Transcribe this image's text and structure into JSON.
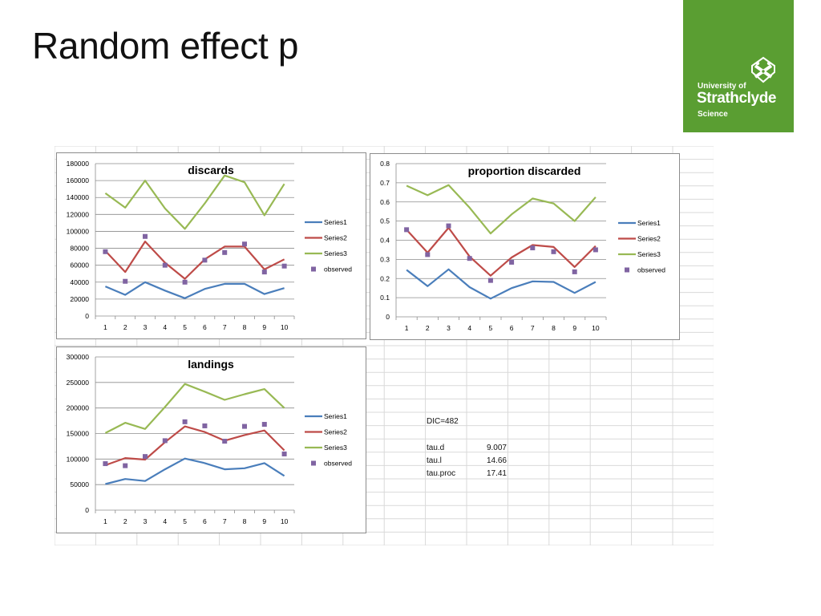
{
  "slide": {
    "title": "Random effect p"
  },
  "logo": {
    "line1": "University of",
    "line2": "Strathclyde",
    "line3": "Science",
    "background": "#5a9e32"
  },
  "colors": {
    "series1": "#4a7ebb",
    "series2": "#be4b48",
    "series3": "#98b954",
    "observed": "#8064a2"
  },
  "stats": {
    "dic": "DIC=482",
    "rows": [
      {
        "label": "tau.d",
        "value": "9.007"
      },
      {
        "label": "tau.l",
        "value": "14.66"
      },
      {
        "label": "tau.proc",
        "value": "17.41"
      }
    ]
  },
  "chart_data": [
    {
      "id": "discards",
      "type": "line",
      "title": "discards",
      "x": [
        1,
        2,
        3,
        4,
        5,
        6,
        7,
        8,
        9,
        10
      ],
      "ylim": [
        0,
        180000
      ],
      "yticks": [
        0,
        20000,
        40000,
        60000,
        80000,
        100000,
        120000,
        140000,
        160000,
        180000
      ],
      "series": [
        {
          "name": "Series1",
          "values": [
            35000,
            25000,
            40000,
            30000,
            21000,
            32000,
            38000,
            38000,
            26000,
            33000
          ]
        },
        {
          "name": "Series2",
          "values": [
            77000,
            52000,
            88000,
            63000,
            44000,
            67000,
            82000,
            82000,
            55000,
            67000
          ]
        },
        {
          "name": "Series3",
          "values": [
            145000,
            128000,
            160000,
            127000,
            103000,
            133000,
            166000,
            158000,
            119000,
            156000
          ]
        }
      ],
      "observed": {
        "name": "observed",
        "values": [
          76000,
          41000,
          94000,
          60000,
          40000,
          66000,
          75000,
          85000,
          52000,
          59000
        ]
      },
      "legend": "right",
      "grid": true
    },
    {
      "id": "proportion",
      "type": "line",
      "title": "proportion discarded",
      "x": [
        1,
        2,
        3,
        4,
        5,
        6,
        7,
        8,
        9,
        10
      ],
      "ylim": [
        0,
        0.8
      ],
      "yticks": [
        0,
        0.1,
        0.2,
        0.3,
        0.4,
        0.5,
        0.6,
        0.7,
        0.8
      ],
      "series": [
        {
          "name": "Series1",
          "values": [
            0.245,
            0.16,
            0.248,
            0.155,
            0.095,
            0.15,
            0.185,
            0.182,
            0.125,
            0.182
          ]
        },
        {
          "name": "Series2",
          "values": [
            0.455,
            0.335,
            0.465,
            0.315,
            0.215,
            0.31,
            0.375,
            0.365,
            0.26,
            0.37
          ]
        },
        {
          "name": "Series3",
          "values": [
            0.685,
            0.635,
            0.688,
            0.57,
            0.435,
            0.535,
            0.618,
            0.592,
            0.5,
            0.625
          ]
        }
      ],
      "observed": {
        "name": "observed",
        "values": [
          0.455,
          0.325,
          0.475,
          0.305,
          0.19,
          0.285,
          0.36,
          0.34,
          0.235,
          0.35
        ]
      },
      "legend": "right",
      "grid": true
    },
    {
      "id": "landings",
      "type": "line",
      "title": "landings",
      "x": [
        1,
        2,
        3,
        4,
        5,
        6,
        7,
        8,
        9,
        10
      ],
      "ylim": [
        0,
        300000
      ],
      "yticks": [
        0,
        50000,
        100000,
        150000,
        200000,
        250000,
        300000
      ],
      "series": [
        {
          "name": "Series1",
          "values": [
            51000,
            61000,
            57000,
            80000,
            101000,
            92000,
            80000,
            82000,
            92000,
            67000
          ]
        },
        {
          "name": "Series2",
          "values": [
            88000,
            102000,
            99000,
            133000,
            164000,
            153000,
            136000,
            147000,
            156000,
            117000
          ]
        },
        {
          "name": "Series3",
          "values": [
            151000,
            171000,
            159000,
            202000,
            247000,
            232000,
            216000,
            227000,
            237000,
            200000
          ]
        }
      ],
      "observed": {
        "name": "observed",
        "values": [
          91000,
          87000,
          105000,
          136000,
          173000,
          165000,
          135000,
          164000,
          168000,
          110000
        ]
      },
      "legend": "right",
      "grid": true
    }
  ]
}
